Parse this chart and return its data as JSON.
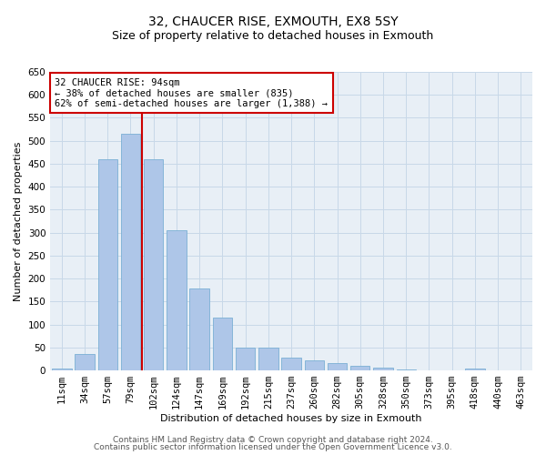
{
  "title": "32, CHAUCER RISE, EXMOUTH, EX8 5SY",
  "subtitle": "Size of property relative to detached houses in Exmouth",
  "xlabel": "Distribution of detached houses by size in Exmouth",
  "ylabel": "Number of detached properties",
  "categories": [
    "11sqm",
    "34sqm",
    "57sqm",
    "79sqm",
    "102sqm",
    "124sqm",
    "147sqm",
    "169sqm",
    "192sqm",
    "215sqm",
    "237sqm",
    "260sqm",
    "282sqm",
    "305sqm",
    "328sqm",
    "350sqm",
    "373sqm",
    "395sqm",
    "418sqm",
    "440sqm",
    "463sqm"
  ],
  "values": [
    5,
    35,
    460,
    515,
    460,
    305,
    178,
    116,
    50,
    50,
    27,
    22,
    17,
    11,
    7,
    3,
    1,
    1,
    5,
    1,
    1
  ],
  "bar_color": "#aec6e8",
  "bar_edge_color": "#7aafd4",
  "vline_x_index": 3,
  "vline_color": "#cc0000",
  "annotation_text": "32 CHAUCER RISE: 94sqm\n← 38% of detached houses are smaller (835)\n62% of semi-detached houses are larger (1,388) →",
  "annotation_box_color": "#cc0000",
  "ylim": [
    0,
    650
  ],
  "yticks": [
    0,
    50,
    100,
    150,
    200,
    250,
    300,
    350,
    400,
    450,
    500,
    550,
    600,
    650
  ],
  "grid_color": "#c8d8e8",
  "bg_color": "#e8eff6",
  "footer1": "Contains HM Land Registry data © Crown copyright and database right 2024.",
  "footer2": "Contains public sector information licensed under the Open Government Licence v3.0.",
  "title_fontsize": 10,
  "subtitle_fontsize": 9,
  "axis_label_fontsize": 8,
  "tick_fontsize": 7.5,
  "annotation_fontsize": 7.5,
  "footer_fontsize": 6.5
}
